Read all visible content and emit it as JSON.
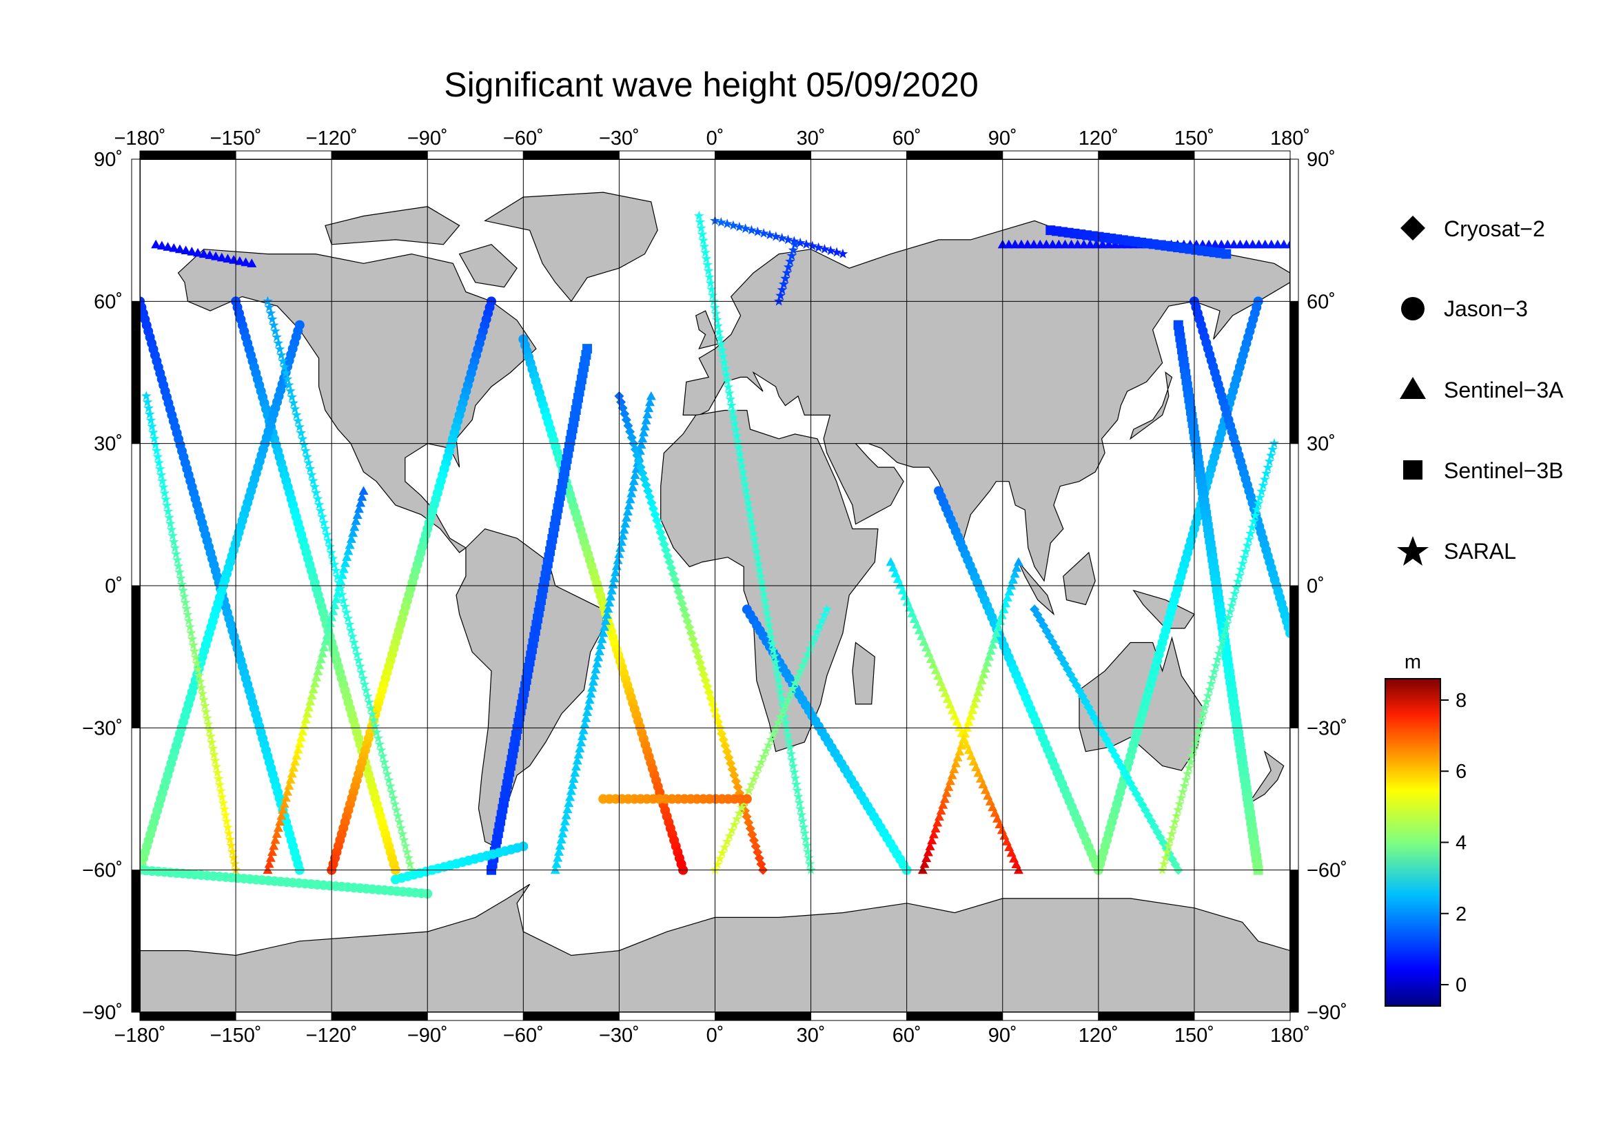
{
  "title": "Significant wave height 05/09/2020",
  "map": {
    "projection": "equirectangular",
    "lon_range": [
      -180,
      180
    ],
    "lat_range": [
      -90,
      90
    ],
    "lon_ticks": [
      -180,
      -150,
      -120,
      -90,
      -60,
      -30,
      0,
      30,
      60,
      90,
      120,
      150,
      180
    ],
    "lat_ticks": [
      -90,
      -60,
      -30,
      0,
      30,
      60,
      90
    ],
    "lon_tick_labels": [
      "−180˚",
      "−150˚",
      "−120˚",
      "−90˚",
      "−60˚",
      "−30˚",
      "0˚",
      "30˚",
      "60˚",
      "90˚",
      "120˚",
      "150˚",
      "180˚"
    ],
    "lat_tick_labels": [
      "−90˚",
      "−60˚",
      "−30˚",
      "0˚",
      "30˚",
      "60˚",
      "90˚"
    ],
    "grid": true,
    "land_color": "#bebebe",
    "ocean_color": "#ffffff",
    "frame": "alternating black/white border"
  },
  "legend": {
    "items": [
      {
        "label": "Cryosat−2",
        "marker": "diamond"
      },
      {
        "label": "Jason−3",
        "marker": "circle"
      },
      {
        "label": "Sentinel−3A",
        "marker": "triangle"
      },
      {
        "label": "Sentinel−3B",
        "marker": "square"
      },
      {
        "label": "SARAL",
        "marker": "star"
      }
    ]
  },
  "colorbar": {
    "unit": "m",
    "range": [
      -0.6,
      8.6
    ],
    "ticks": [
      0,
      2,
      4,
      6,
      8
    ],
    "tick_labels": [
      "0",
      "2",
      "4",
      "6",
      "8"
    ],
    "colormap": "jet"
  },
  "chart_data": {
    "type": "scatter",
    "title": "Significant wave height 05/09/2020",
    "xlabel": "",
    "ylabel": "",
    "xlim": [
      -180,
      180
    ],
    "ylim": [
      -90,
      90
    ],
    "color_variable": "significant wave height (m)",
    "tracks": [
      {
        "name": "Jason−3",
        "marker": "circle",
        "lon0": -150,
        "lat0": 60,
        "lon1": -100,
        "lat1": -60,
        "hs0": 1.2,
        "hs1": 5.5
      },
      {
        "name": "Jason−3",
        "marker": "circle",
        "lon0": -70,
        "lat0": 60,
        "lon1": -120,
        "lat1": -60,
        "hs0": 1.0,
        "hs1": 7.0
      },
      {
        "name": "Jason−3",
        "marker": "circle",
        "lon0": -60,
        "lat0": 52,
        "lon1": -10,
        "lat1": -60,
        "hs0": 2.0,
        "hs1": 7.5
      },
      {
        "name": "Jason−3",
        "marker": "circle",
        "lon0": 10,
        "lat0": -5,
        "lon1": 60,
        "lat1": -60,
        "hs0": 1.5,
        "hs1": 3.0
      },
      {
        "name": "Jason−3",
        "marker": "circle",
        "lon0": 70,
        "lat0": 20,
        "lon1": 120,
        "lat1": -60,
        "hs0": 1.5,
        "hs1": 4.0
      },
      {
        "name": "Jason−3",
        "marker": "circle",
        "lon0": 170,
        "lat0": 60,
        "lon1": 120,
        "lat1": -60,
        "hs0": 1.5,
        "hs1": 4.0
      },
      {
        "name": "Jason−3",
        "marker": "circle",
        "lon0": 150,
        "lat0": 60,
        "lon1": 180,
        "lat1": -10,
        "hs0": 1.0,
        "hs1": 2.5
      },
      {
        "name": "Jason−3",
        "marker": "circle",
        "lon0": -180,
        "lat0": 60,
        "lon1": -130,
        "lat1": -60,
        "hs0": 1.0,
        "hs1": 3.0
      },
      {
        "name": "Jason−3",
        "marker": "circle",
        "lon0": -130,
        "lat0": 55,
        "lon1": -180,
        "lat1": -60,
        "hs0": 1.5,
        "hs1": 4.0
      },
      {
        "name": "Sentinel−3A",
        "marker": "triangle",
        "lon0": -110,
        "lat0": 20,
        "lon1": -140,
        "lat1": -60,
        "hs0": 1.5,
        "hs1": 7.0
      },
      {
        "name": "Sentinel−3A",
        "marker": "triangle",
        "lon0": -20,
        "lat0": 40,
        "lon1": -50,
        "lat1": -60,
        "hs0": 2.0,
        "hs1": 2.5
      },
      {
        "name": "Sentinel−3A",
        "marker": "triangle",
        "lon0": 55,
        "lat0": 5,
        "lon1": 95,
        "lat1": -60,
        "hs0": 2.5,
        "hs1": 7.5
      },
      {
        "name": "Sentinel−3A",
        "marker": "triangle",
        "lon0": 95,
        "lat0": 5,
        "lon1": 65,
        "lat1": -60,
        "hs0": 2.0,
        "hs1": 8.0
      },
      {
        "name": "Sentinel−3B",
        "marker": "square",
        "lon0": -40,
        "lat0": 50,
        "lon1": -70,
        "lat1": -60,
        "hs0": 1.5,
        "hs1": 1.0
      },
      {
        "name": "Sentinel−3B",
        "marker": "square",
        "lon0": 145,
        "lat0": 55,
        "lon1": 170,
        "lat1": -60,
        "hs0": 1.2,
        "hs1": 4.0
      },
      {
        "name": "Cryosat−2",
        "marker": "diamond",
        "lon0": -30,
        "lat0": 40,
        "lon1": 15,
        "lat1": -60,
        "hs0": 1.5,
        "hs1": 7.0
      },
      {
        "name": "Cryosat−2",
        "marker": "diamond",
        "lon0": 100,
        "lat0": -5,
        "lon1": 145,
        "lat1": -60,
        "hs0": 2.0,
        "hs1": 3.5
      },
      {
        "name": "SARAL",
        "marker": "star",
        "lon0": -178,
        "lat0": 40,
        "lon1": -150,
        "lat1": -60,
        "hs0": 2.5,
        "hs1": 5.5
      },
      {
        "name": "SARAL",
        "marker": "star",
        "lon0": -140,
        "lat0": 60,
        "lon1": -95,
        "lat1": -60,
        "hs0": 2.0,
        "hs1": 4.0
      },
      {
        "name": "SARAL",
        "marker": "star",
        "lon0": -5,
        "lat0": 78,
        "lon1": 30,
        "lat1": -60,
        "hs0": 3.0,
        "hs1": 3.5
      },
      {
        "name": "SARAL",
        "marker": "star",
        "lon0": 35,
        "lat0": -5,
        "lon1": 0,
        "lat1": -60,
        "hs0": 3.0,
        "hs1": 5.0
      },
      {
        "name": "SARAL",
        "marker": "star",
        "lon0": 175,
        "lat0": 30,
        "lon1": 140,
        "lat1": -60,
        "hs0": 2.5,
        "hs1": 4.5
      },
      {
        "name": "Jason−3",
        "marker": "circle",
        "lon0": -180,
        "lat0": -60,
        "lon1": -90,
        "lat1": -65,
        "hs0": 3.5,
        "hs1": 3.5
      },
      {
        "name": "Jason−3",
        "marker": "circle",
        "lon0": -100,
        "lat0": -62,
        "lon1": -60,
        "lat1": -55,
        "hs0": 3.0,
        "hs1": 2.5
      },
      {
        "name": "Jason−3",
        "marker": "circle",
        "lon0": -35,
        "lat0": -45,
        "lon1": 10,
        "lat1": -45,
        "hs0": 6.0,
        "hs1": 6.5
      },
      {
        "name": "Sentinel−3A",
        "marker": "triangle",
        "lon0": -175,
        "lat0": 72,
        "lon1": -145,
        "lat1": 68,
        "hs0": 0.6,
        "hs1": 0.6
      },
      {
        "name": "Sentinel−3A",
        "marker": "triangle",
        "lon0": 90,
        "lat0": 72,
        "lon1": 180,
        "lat1": 72,
        "hs0": 0.6,
        "hs1": 0.8
      },
      {
        "name": "Sentinel−3B",
        "marker": "square",
        "lon0": 105,
        "lat0": 75,
        "lon1": 160,
        "lat1": 70,
        "hs0": 0.8,
        "hs1": 1.2
      },
      {
        "name": "SARAL",
        "marker": "star",
        "lon0": 0,
        "lat0": 77,
        "lon1": 40,
        "lat1": 70,
        "hs0": 1.5,
        "hs1": 0.8
      },
      {
        "name": "SARAL",
        "marker": "star",
        "lon0": 25,
        "lat0": 72,
        "lon1": 20,
        "lat1": 60,
        "hs0": 1.2,
        "hs1": 1.0
      }
    ]
  }
}
